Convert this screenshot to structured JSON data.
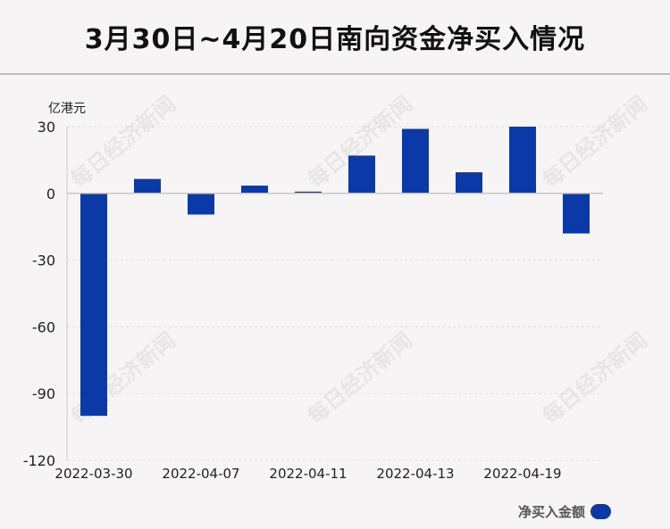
{
  "title": "3月30日~4月20日南向资金净买入情况",
  "unit_label": "亿港元",
  "watermark_text": "每日经济新闻",
  "legend_label": "净买入金额",
  "colors": {
    "bar": "#0b3aa8",
    "grid": "#dcdcdc",
    "axis": "#c8c8c8"
  },
  "chart_data": {
    "type": "bar",
    "title": "3月30日~4月20日南向资金净买入情况",
    "ylabel": "亿港元",
    "xlabel": "",
    "categories": [
      "2022-03-30",
      "",
      "2022-04-07",
      "",
      "2022-04-11",
      "",
      "2022-04-13",
      "",
      "2022-04-19",
      ""
    ],
    "values": [
      -100,
      6.5,
      -9.5,
      3.5,
      0.8,
      17,
      29,
      9.5,
      30,
      -18
    ],
    "series": [
      {
        "name": "净买入金额",
        "values": [
          -100,
          6.5,
          -9.5,
          3.5,
          0.8,
          17,
          29,
          9.5,
          30,
          -18
        ]
      }
    ],
    "ylim": [
      -120,
      30
    ],
    "yticks": [
      30,
      0,
      -30,
      -60,
      -90,
      -120
    ],
    "grid": true,
    "legend": "bottom-right"
  }
}
